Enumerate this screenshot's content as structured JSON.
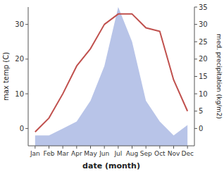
{
  "chart_data": {
    "type": "line",
    "xlabel": "date (month)",
    "ylabel": "max temp (C)",
    "y2label": "med. precipitation (kg/m2)",
    "categories": [
      "Jan",
      "Feb",
      "Mar",
      "Apr",
      "May",
      "Jun",
      "Jul",
      "Aug",
      "Sep",
      "Oct",
      "Nov",
      "Dec"
    ],
    "series": [
      {
        "type": "area",
        "axis": "y2",
        "color": "#b8c4e8",
        "values": [
          -2,
          -2,
          0,
          2,
          8,
          18,
          35,
          25,
          8,
          2,
          -2,
          1
        ]
      },
      {
        "type": "line",
        "color": "#c0504d",
        "values": [
          -1,
          3,
          10,
          18,
          23,
          30,
          33,
          33,
          29,
          28,
          14,
          5
        ]
      }
    ],
    "ylim": [
      -5,
      35
    ],
    "yticks": [
      0,
      10,
      20,
      30
    ],
    "y2lim": [
      -5,
      35
    ],
    "y2ticks": [
      0,
      5,
      10,
      15,
      20,
      25,
      30,
      35
    ],
    "grid": false
  }
}
